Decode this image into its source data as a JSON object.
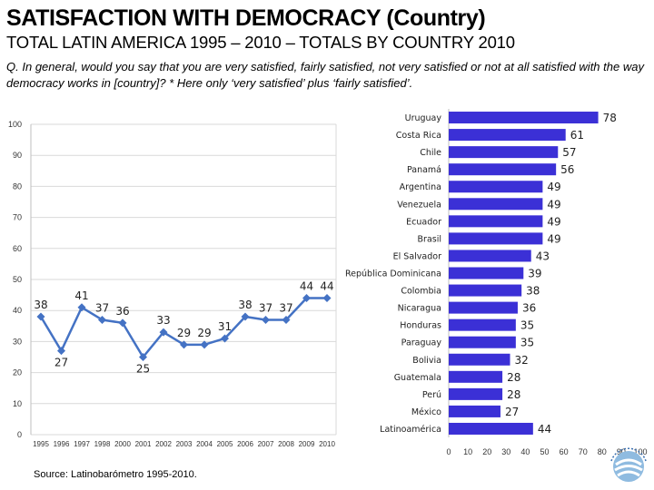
{
  "header": {
    "title": "SATISFACTION WITH DEMOCRACY (Country)",
    "subtitle": "TOTAL LATIN AMERICA  1995 – 2010 – TOTALS BY COUNTRY 2010",
    "question": "Q. In general, would you say that you are very satisfied, fairly satisfied, not very satisfied or not at all satisfied with the way democracy works in [country]? * Here only ‘very satisfied’ plus ‘fairly satisfied’."
  },
  "footer": {
    "source": "Source: Latinobarómetro 1995-2010."
  },
  "colors": {
    "line": "#4472c4",
    "bar": "#3b30d6",
    "grid": "#d9d9d9",
    "axis": "#bfbfbf"
  },
  "chart_data": [
    {
      "type": "line",
      "x": [
        "1995",
        "1996",
        "1997",
        "1998",
        "2000",
        "2001",
        "2002",
        "2003",
        "2004",
        "2005",
        "2006",
        "2007",
        "2008",
        "2009",
        "2010"
      ],
      "series": [
        {
          "values": [
            38,
            27,
            41,
            37,
            36,
            25,
            33,
            29,
            29,
            31,
            38,
            37,
            37,
            44,
            44
          ]
        }
      ],
      "ylim": [
        0,
        100
      ],
      "yticks": [
        0,
        10,
        20,
        30,
        40,
        50,
        60,
        70,
        80,
        90,
        100
      ],
      "grid": true,
      "data_labels": true
    },
    {
      "type": "bar",
      "orientation": "horizontal",
      "categories": [
        "Uruguay",
        "Costa Rica",
        "Chile",
        "Panamá",
        "Argentina",
        "Venezuela",
        "Ecuador",
        "Brasil",
        "El Salvador",
        "República Dominicana",
        "Colombia",
        "Nicaragua",
        "Honduras",
        "Paraguay",
        "Bolivia",
        "Guatemala",
        "Perú",
        "México",
        "Latinoamérica"
      ],
      "values": [
        78,
        61,
        57,
        56,
        49,
        49,
        49,
        49,
        43,
        39,
        38,
        36,
        35,
        35,
        32,
        28,
        28,
        27,
        44
      ],
      "xlim": [
        0,
        100
      ],
      "xticks": [
        0,
        10,
        20,
        30,
        40,
        50,
        60,
        70,
        80,
        90,
        100
      ],
      "data_labels": true
    }
  ]
}
